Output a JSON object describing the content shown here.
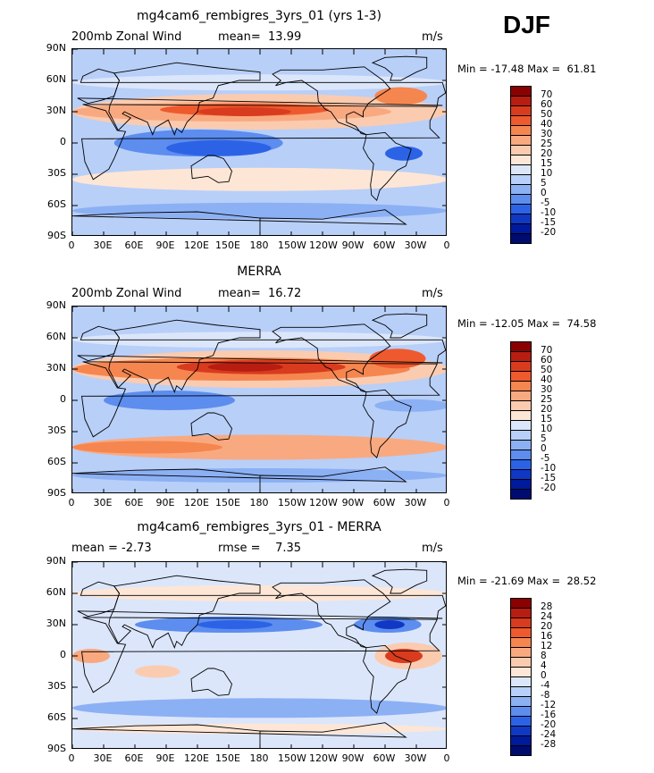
{
  "season": "DJF",
  "panels": [
    {
      "title": "mg4cam6_rembigres_3yrs_01 (yrs 1-3)",
      "left_label": "200mb Zonal Wind",
      "center_label": "mean=  13.99",
      "units": "m/s",
      "minmax": "Min = -17.48 Max =  61.81",
      "levels": [
        "70",
        "60",
        "50",
        "40",
        "30",
        "25",
        "20",
        "15",
        "10",
        "5",
        "0",
        "-5",
        "-10",
        "-15",
        "-20"
      ],
      "colors": [
        "#8b0000",
        "#b81d12",
        "#d93b1e",
        "#ee5a2e",
        "#f6864f",
        "#f9a980",
        "#fbcbb0",
        "#fde6d6",
        "#dbe6fb",
        "#b8cff8",
        "#8cb0f4",
        "#5c8def",
        "#2c63e6",
        "#1038c4",
        "#001a9c",
        "#000b70"
      ]
    },
    {
      "title": "MERRA",
      "left_label": "200mb Zonal Wind",
      "center_label": "mean=  16.72",
      "units": "m/s",
      "minmax": "Min = -12.05 Max =  74.58",
      "levels": [
        "70",
        "60",
        "50",
        "40",
        "30",
        "25",
        "20",
        "15",
        "10",
        "5",
        "0",
        "-5",
        "-10",
        "-15",
        "-20"
      ],
      "colors": [
        "#8b0000",
        "#b81d12",
        "#d93b1e",
        "#ee5a2e",
        "#f6864f",
        "#f9a980",
        "#fbcbb0",
        "#fde6d6",
        "#dbe6fb",
        "#b8cff8",
        "#8cb0f4",
        "#5c8def",
        "#2c63e6",
        "#1038c4",
        "#001a9c",
        "#000b70"
      ]
    },
    {
      "title": "mg4cam6_rembigres_3yrs_01 - MERRA",
      "left_label": "mean =   -2.73",
      "center_label": "rmse =    7.35",
      "units": "m/s",
      "minmax": "Min = -21.69 Max =  28.52",
      "levels": [
        "28",
        "24",
        "20",
        "16",
        "12",
        "8",
        "4",
        "0",
        "-4",
        "-8",
        "-12",
        "-16",
        "-20",
        "-24",
        "-28"
      ],
      "colors": [
        "#8b0000",
        "#b81d12",
        "#d93b1e",
        "#ee5a2e",
        "#f6864f",
        "#f9a980",
        "#fbcbb0",
        "#fde6d6",
        "#dbe6fb",
        "#b8cff8",
        "#8cb0f4",
        "#5c8def",
        "#2c63e6",
        "#1038c4",
        "#001a9c",
        "#000b70"
      ]
    }
  ],
  "x_ticks": [
    "0",
    "30E",
    "60E",
    "90E",
    "120E",
    "150E",
    "180",
    "150W",
    "120W",
    "90W",
    "60W",
    "30W",
    "0"
  ],
  "y_ticks": [
    "90N",
    "60N",
    "30N",
    "0",
    "30S",
    "60S",
    "90S"
  ]
}
